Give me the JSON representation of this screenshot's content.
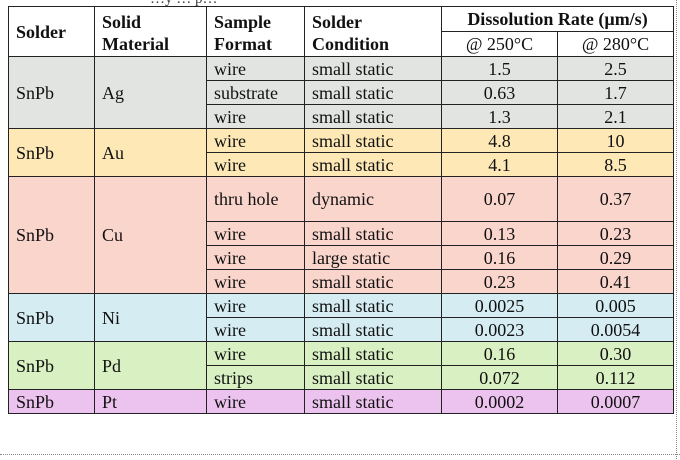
{
  "clipped_text": "…y … p…",
  "header": {
    "solder": "Solder",
    "solid_material_1": "Solid",
    "solid_material_2": "Material",
    "sample_format_1": "Sample",
    "sample_format_2": "Format",
    "solder_condition_1": "Solder",
    "solder_condition_2": "Condition",
    "dissolution_rate": "Dissolution Rate (µm/s)",
    "temp_250": "@ 250°C",
    "temp_280": "@ 280°C"
  },
  "groups": [
    {
      "key": "ag",
      "solder": "SnPb",
      "material": "Ag",
      "color": "#e2e4e2",
      "rows": [
        {
          "format": "wire",
          "condition": "small static",
          "rate_250": "1.5",
          "rate_280": "2.5"
        },
        {
          "format": "substrate",
          "condition": "small static",
          "rate_250": "0.63",
          "rate_280": "1.7"
        },
        {
          "format": "wire",
          "condition": "small static",
          "rate_250": "1.3",
          "rate_280": "2.1"
        }
      ]
    },
    {
      "key": "au",
      "solder": "SnPb",
      "material": "Au",
      "color": "#fde8b6",
      "rows": [
        {
          "format": "wire",
          "condition": "small static",
          "rate_250": "4.8",
          "rate_280": "10"
        },
        {
          "format": "wire",
          "condition": "small static",
          "rate_250": "4.1",
          "rate_280": "8.5"
        }
      ]
    },
    {
      "key": "cu",
      "solder": "SnPb",
      "material": "Cu",
      "color": "#fad5cc",
      "rows": [
        {
          "format": "thru hole",
          "condition": "dynamic",
          "rate_250": "0.07",
          "rate_280": "0.37"
        },
        {
          "format": "wire",
          "condition": "small static",
          "rate_250": "0.13",
          "rate_280": "0.23"
        },
        {
          "format": "wire",
          "condition": "large static",
          "rate_250": "0.16",
          "rate_280": "0.29"
        },
        {
          "format": "wire",
          "condition": "small static",
          "rate_250": "0.23",
          "rate_280": "0.41"
        }
      ]
    },
    {
      "key": "ni",
      "solder": "SnPb",
      "material": "Ni",
      "color": "#d5ecf3",
      "rows": [
        {
          "format": "wire",
          "condition": "small static",
          "rate_250": "0.0025",
          "rate_280": "0.005"
        },
        {
          "format": "wire",
          "condition": "small static",
          "rate_250": "0.0023",
          "rate_280": "0.0054"
        }
      ]
    },
    {
      "key": "pd",
      "solder": "SnPb",
      "material": "Pd",
      "color": "#d8f0c2",
      "rows": [
        {
          "format": "wire",
          "condition": "small static",
          "rate_250": "0.16",
          "rate_280": "0.30"
        },
        {
          "format": "strips",
          "condition": "small static",
          "rate_250": "0.072",
          "rate_280": "0.112"
        }
      ]
    },
    {
      "key": "pt",
      "solder": "SnPb",
      "material": "Pt",
      "color": "#ecc3ee",
      "rows": [
        {
          "format": "wire",
          "condition": "small static",
          "rate_250": "0.0002",
          "rate_280": "0.0007"
        }
      ]
    }
  ]
}
